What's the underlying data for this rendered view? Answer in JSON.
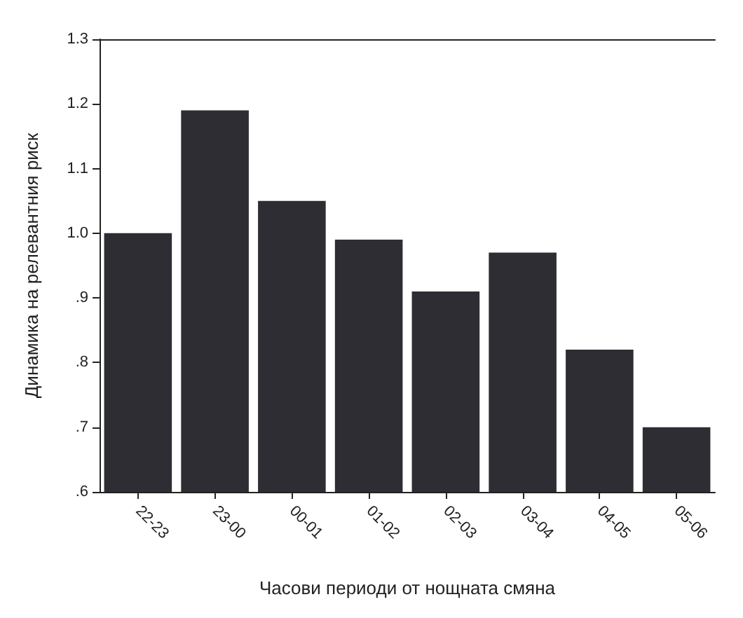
{
  "chart_data": {
    "type": "bar",
    "xlabel": "Часови периоди от нощната смяна",
    "ylabel": "Динамика на релевантния риск",
    "categories": [
      "22-23",
      "23-00",
      "00-01",
      "01-02",
      "02-03",
      "03-04",
      "04-05",
      "05-06"
    ],
    "values": [
      1.0,
      1.19,
      1.05,
      0.99,
      0.91,
      0.97,
      0.82,
      0.7
    ],
    "color": "#2d2d33",
    "ylim": [
      0.6,
      1.3
    ],
    "yticks": [
      {
        "value": 0.6,
        "label": ".6"
      },
      {
        "value": 0.7,
        "label": ".7"
      },
      {
        "value": 0.8,
        "label": ".8"
      },
      {
        "value": 0.9,
        "label": ".9"
      },
      {
        "value": 1.0,
        "label": "1.0"
      },
      {
        "value": 1.1,
        "label": "1.1"
      },
      {
        "value": 1.2,
        "label": "1.2"
      },
      {
        "value": 1.3,
        "label": "1.3"
      }
    ],
    "grid": false
  }
}
